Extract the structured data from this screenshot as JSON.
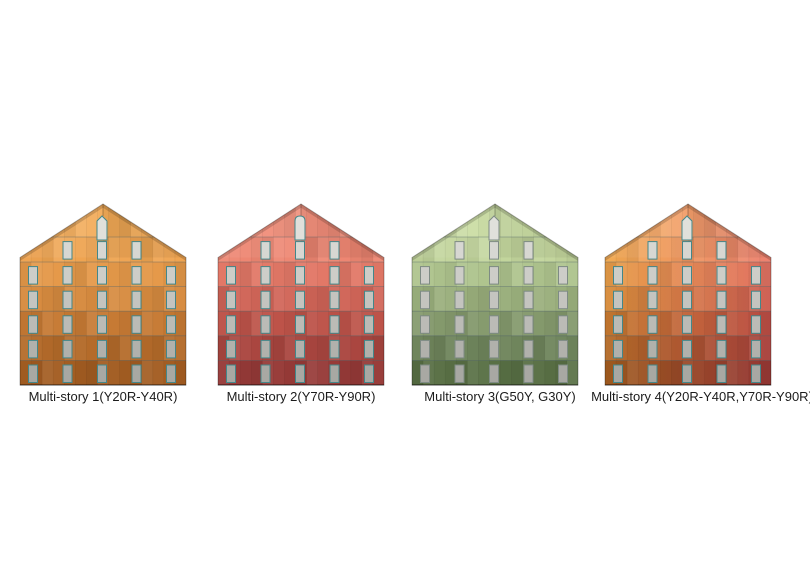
{
  "background": "#ffffff",
  "figure": {
    "type": "facade-color-study",
    "label_color": "#1c1c1c",
    "window_fill_top": "#E0E0DB",
    "window_fill_bottom": "#A8A8A3",
    "floorline_color": "rgba(80,100,105,0.5)",
    "panelline_color": "rgba(0,0,0,0.08)",
    "outline_color": "rgba(0,0,0,0.3)",
    "buildings": [
      {
        "label": "Multi-story 1(Y20R-Y40R)",
        "top_window": "peak",
        "window_border": "#43878A",
        "floor_colors_left": [
          "#F3AB57",
          "#EFA451",
          "#E5994A",
          "#D78B40",
          "#C67A34",
          "#B46B2A",
          "#A35D22"
        ],
        "floor_colors_right": [
          "#F3AB57",
          "#EFA451",
          "#E5994A",
          "#D78B40",
          "#C67A34",
          "#B46B2A",
          "#A35D22"
        ]
      },
      {
        "label": "Multi-story 2(Y70R-Y90R)",
        "top_window": "arch",
        "window_border": "#43878A",
        "floor_colors_left": [
          "#F18D79",
          "#EE8672",
          "#E27867",
          "#D16558",
          "#BD5349",
          "#AA4640",
          "#973B38"
        ],
        "floor_colors_right": [
          "#F18D79",
          "#EE8672",
          "#E27867",
          "#D16558",
          "#BD5349",
          "#AA4640",
          "#973B38"
        ]
      },
      {
        "label": "Multi-story 3(G50Y, G30Y)",
        "top_window": "peak",
        "window_border": "#7E8B84",
        "floor_colors_left": [
          "#CADDA3",
          "#C2D59C",
          "#AFC48E",
          "#9AAF7C",
          "#84996C",
          "#6F855C",
          "#597045"
        ],
        "floor_colors_right": [
          "#CADDA3",
          "#C2D59C",
          "#AFC48E",
          "#9AAF7C",
          "#84996C",
          "#6F855C",
          "#597045"
        ]
      },
      {
        "label": "Multi-story 4(Y20R-Y40R,Y70R-Y90R)",
        "top_window": "peak",
        "window_border": "#43878A",
        "floor_colors_left": [
          "#F5B159",
          "#F1AA51",
          "#E79D48",
          "#D88D3C",
          "#C67A30",
          "#B36A27",
          "#A05B1F"
        ],
        "floor_colors_right": [
          "#F0897A",
          "#ED8170",
          "#E17263",
          "#CF5F53",
          "#BB4D45",
          "#A8413D",
          "#953734"
        ]
      }
    ]
  }
}
